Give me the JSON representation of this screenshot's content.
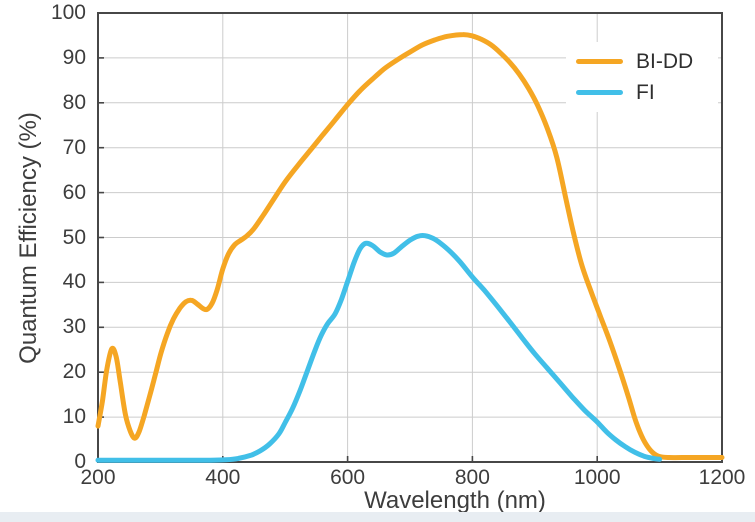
{
  "figure": {
    "background": "#ffffff",
    "bottom_strip_color": "#e8edf2",
    "text_color": "#3d3d3d",
    "axis_color": "#474747",
    "grid_color": "#cccccc"
  },
  "chart_data": {
    "type": "line",
    "title": "",
    "xlabel": "Wavelength (nm)",
    "ylabel": "Quantum Efficiency (%)",
    "xlim": [
      200,
      1200
    ],
    "ylim": [
      0,
      100
    ],
    "xticks": [
      200,
      400,
      600,
      800,
      1000,
      1200
    ],
    "yticks": [
      0,
      10,
      20,
      30,
      40,
      50,
      60,
      70,
      80,
      90,
      100
    ],
    "grid": true,
    "legend_position": "top-right",
    "series": [
      {
        "name": "BI-DD",
        "color": "#F5A623",
        "points": [
          [
            200,
            8
          ],
          [
            207,
            13.5
          ],
          [
            214,
            20.5
          ],
          [
            222,
            25.2
          ],
          [
            229,
            23.5
          ],
          [
            236,
            17.5
          ],
          [
            244,
            10.5
          ],
          [
            252,
            6.8
          ],
          [
            259,
            5.3
          ],
          [
            266,
            6.8
          ],
          [
            274,
            10.3
          ],
          [
            283,
            14.8
          ],
          [
            292,
            19.5
          ],
          [
            301,
            24.3
          ],
          [
            311,
            28.6
          ],
          [
            321,
            31.9
          ],
          [
            331,
            34.2
          ],
          [
            341,
            35.7
          ],
          [
            350,
            36
          ],
          [
            359,
            35.2
          ],
          [
            368,
            34.2
          ],
          [
            375,
            34
          ],
          [
            383,
            35.4
          ],
          [
            391,
            38.4
          ],
          [
            400,
            43
          ],
          [
            409,
            46.3
          ],
          [
            419,
            48.4
          ],
          [
            429,
            49.4
          ],
          [
            439,
            50.4
          ],
          [
            450,
            52
          ],
          [
            465,
            55
          ],
          [
            480,
            58.2
          ],
          [
            500,
            62.4
          ],
          [
            520,
            66
          ],
          [
            540,
            69.4
          ],
          [
            560,
            72.8
          ],
          [
            580,
            76.2
          ],
          [
            600,
            79.6
          ],
          [
            620,
            82.7
          ],
          [
            640,
            85.3
          ],
          [
            660,
            87.7
          ],
          [
            680,
            89.6
          ],
          [
            700,
            91.3
          ],
          [
            720,
            92.9
          ],
          [
            740,
            94
          ],
          [
            760,
            94.8
          ],
          [
            785,
            95.2
          ],
          [
            800,
            94.9
          ],
          [
            815,
            94.1
          ],
          [
            830,
            92.9
          ],
          [
            845,
            91.1
          ],
          [
            860,
            89
          ],
          [
            875,
            86.4
          ],
          [
            890,
            83.2
          ],
          [
            905,
            79.3
          ],
          [
            920,
            74.3
          ],
          [
            935,
            68
          ],
          [
            950,
            58.5
          ],
          [
            962,
            51
          ],
          [
            975,
            44
          ],
          [
            990,
            38
          ],
          [
            1005,
            32.5
          ],
          [
            1020,
            27
          ],
          [
            1035,
            21
          ],
          [
            1050,
            14.5
          ],
          [
            1062,
            9
          ],
          [
            1074,
            5
          ],
          [
            1086,
            2.5
          ],
          [
            1098,
            1.3
          ],
          [
            1115,
            1
          ],
          [
            1150,
            1
          ],
          [
            1200,
            1
          ]
        ]
      },
      {
        "name": "FI",
        "color": "#41BFE8",
        "points": [
          [
            200,
            0.4
          ],
          [
            300,
            0.4
          ],
          [
            380,
            0.4
          ],
          [
            405,
            0.5
          ],
          [
            425,
            0.8
          ],
          [
            445,
            1.5
          ],
          [
            460,
            2.5
          ],
          [
            475,
            4
          ],
          [
            490,
            6.3
          ],
          [
            500,
            8.8
          ],
          [
            512,
            12
          ],
          [
            524,
            16
          ],
          [
            536,
            20.5
          ],
          [
            548,
            25
          ],
          [
            558,
            28.3
          ],
          [
            568,
            30.8
          ],
          [
            580,
            33
          ],
          [
            590,
            36.2
          ],
          [
            600,
            40.2
          ],
          [
            610,
            44.3
          ],
          [
            620,
            47.5
          ],
          [
            629,
            48.7
          ],
          [
            640,
            48.2
          ],
          [
            652,
            46.8
          ],
          [
            663,
            46.1
          ],
          [
            674,
            46.5
          ],
          [
            686,
            47.9
          ],
          [
            700,
            49.4
          ],
          [
            713,
            50.3
          ],
          [
            724,
            50.4
          ],
          [
            737,
            49.8
          ],
          [
            750,
            48.6
          ],
          [
            765,
            46.8
          ],
          [
            780,
            44.6
          ],
          [
            800,
            41.2
          ],
          [
            820,
            38.1
          ],
          [
            840,
            34.7
          ],
          [
            860,
            31.2
          ],
          [
            880,
            27.6
          ],
          [
            900,
            24.1
          ],
          [
            920,
            20.9
          ],
          [
            940,
            17.7
          ],
          [
            960,
            14.5
          ],
          [
            980,
            11.5
          ],
          [
            1000,
            8.9
          ],
          [
            1015,
            6.7
          ],
          [
            1030,
            4.9
          ],
          [
            1045,
            3.4
          ],
          [
            1060,
            2.2
          ],
          [
            1075,
            1.3
          ],
          [
            1090,
            0.8
          ],
          [
            1100,
            0.6
          ]
        ]
      }
    ]
  }
}
